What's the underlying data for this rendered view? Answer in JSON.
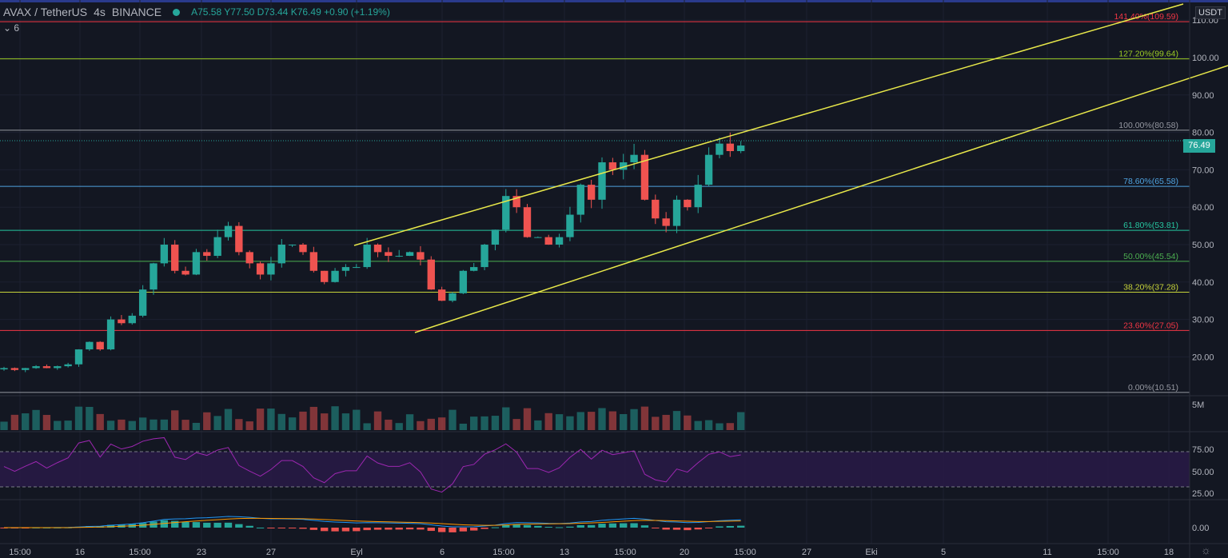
{
  "header": {
    "symbol": "AVAX / TetherUS",
    "interval": "4s",
    "exchange": "BINANCE",
    "open": "A75.58",
    "high": "Y77.50",
    "low": "D73.44",
    "close": "K76.49",
    "change": "+0.90 (+1.19%)",
    "collapse_label": "6"
  },
  "price_axis": {
    "currency": "USDT",
    "current_price": "76.49",
    "ticks": [
      "110.00",
      "100.00",
      "90.00",
      "80.00",
      "70.00",
      "60.00",
      "50.00",
      "40.00",
      "30.00",
      "20.00"
    ],
    "volume_tick": "5M",
    "rsi_ticks": [
      "75.00",
      "50.00",
      "25.00"
    ],
    "macd_tick": "0.00"
  },
  "time_axis": [
    "15:00",
    "16",
    "15:00",
    "23",
    "27",
    "Eyl",
    "6",
    "15:00",
    "13",
    "15:00",
    "20",
    "15:00",
    "27",
    "Eki",
    "5",
    "11",
    "15:00",
    "18"
  ],
  "colors": {
    "bg": "#131722",
    "up": "#26a69a",
    "down": "#ef5350",
    "channel": "#e8e84a",
    "rsi": "#9c27b0"
  },
  "chart_data": {
    "type": "candlestick",
    "title": "AVAX / TetherUS 4s BINANCE",
    "ylim": [
      10,
      112
    ],
    "closes": [
      17,
      16.5,
      17,
      17.5,
      17,
      17.5,
      18,
      22,
      24,
      22,
      30,
      29,
      31,
      38,
      45,
      50,
      43,
      42,
      48,
      47,
      52,
      55,
      48,
      45,
      42,
      45,
      50,
      50,
      48,
      43,
      40,
      43,
      44,
      44,
      50,
      48,
      47,
      47,
      48,
      46,
      38,
      35,
      37,
      43,
      44,
      50,
      54,
      63,
      60,
      52,
      52,
      50,
      52,
      58,
      66,
      62,
      72,
      70,
      72,
      74,
      62,
      57,
      55,
      62,
      60,
      66,
      74,
      77,
      75,
      76.49
    ],
    "fib_levels": [
      {
        "label": "141.40%(109.59)",
        "price": 109.59,
        "color": "#f23645"
      },
      {
        "label": "127.20%(99.64)",
        "price": 99.64,
        "color": "#9ccc25"
      },
      {
        "label": "100.00%(80.58)",
        "price": 80.58,
        "color": "#9598a1"
      },
      {
        "label": "78.60%(65.58)",
        "price": 65.58,
        "color": "#4fa3e0"
      },
      {
        "label": "61.80%(53.81)",
        "price": 53.81,
        "color": "#26c6a0"
      },
      {
        "label": "50.00%(45.54)",
        "price": 45.54,
        "color": "#4caf50"
      },
      {
        "label": "38.20%(37.28)",
        "price": 37.28,
        "color": "#c6d33a"
      },
      {
        "label": "23.60%(27.05)",
        "price": 27.05,
        "color": "#f23645"
      },
      {
        "label": "0.00%(10.51)",
        "price": 10.51,
        "color": "#9598a1"
      }
    ]
  }
}
